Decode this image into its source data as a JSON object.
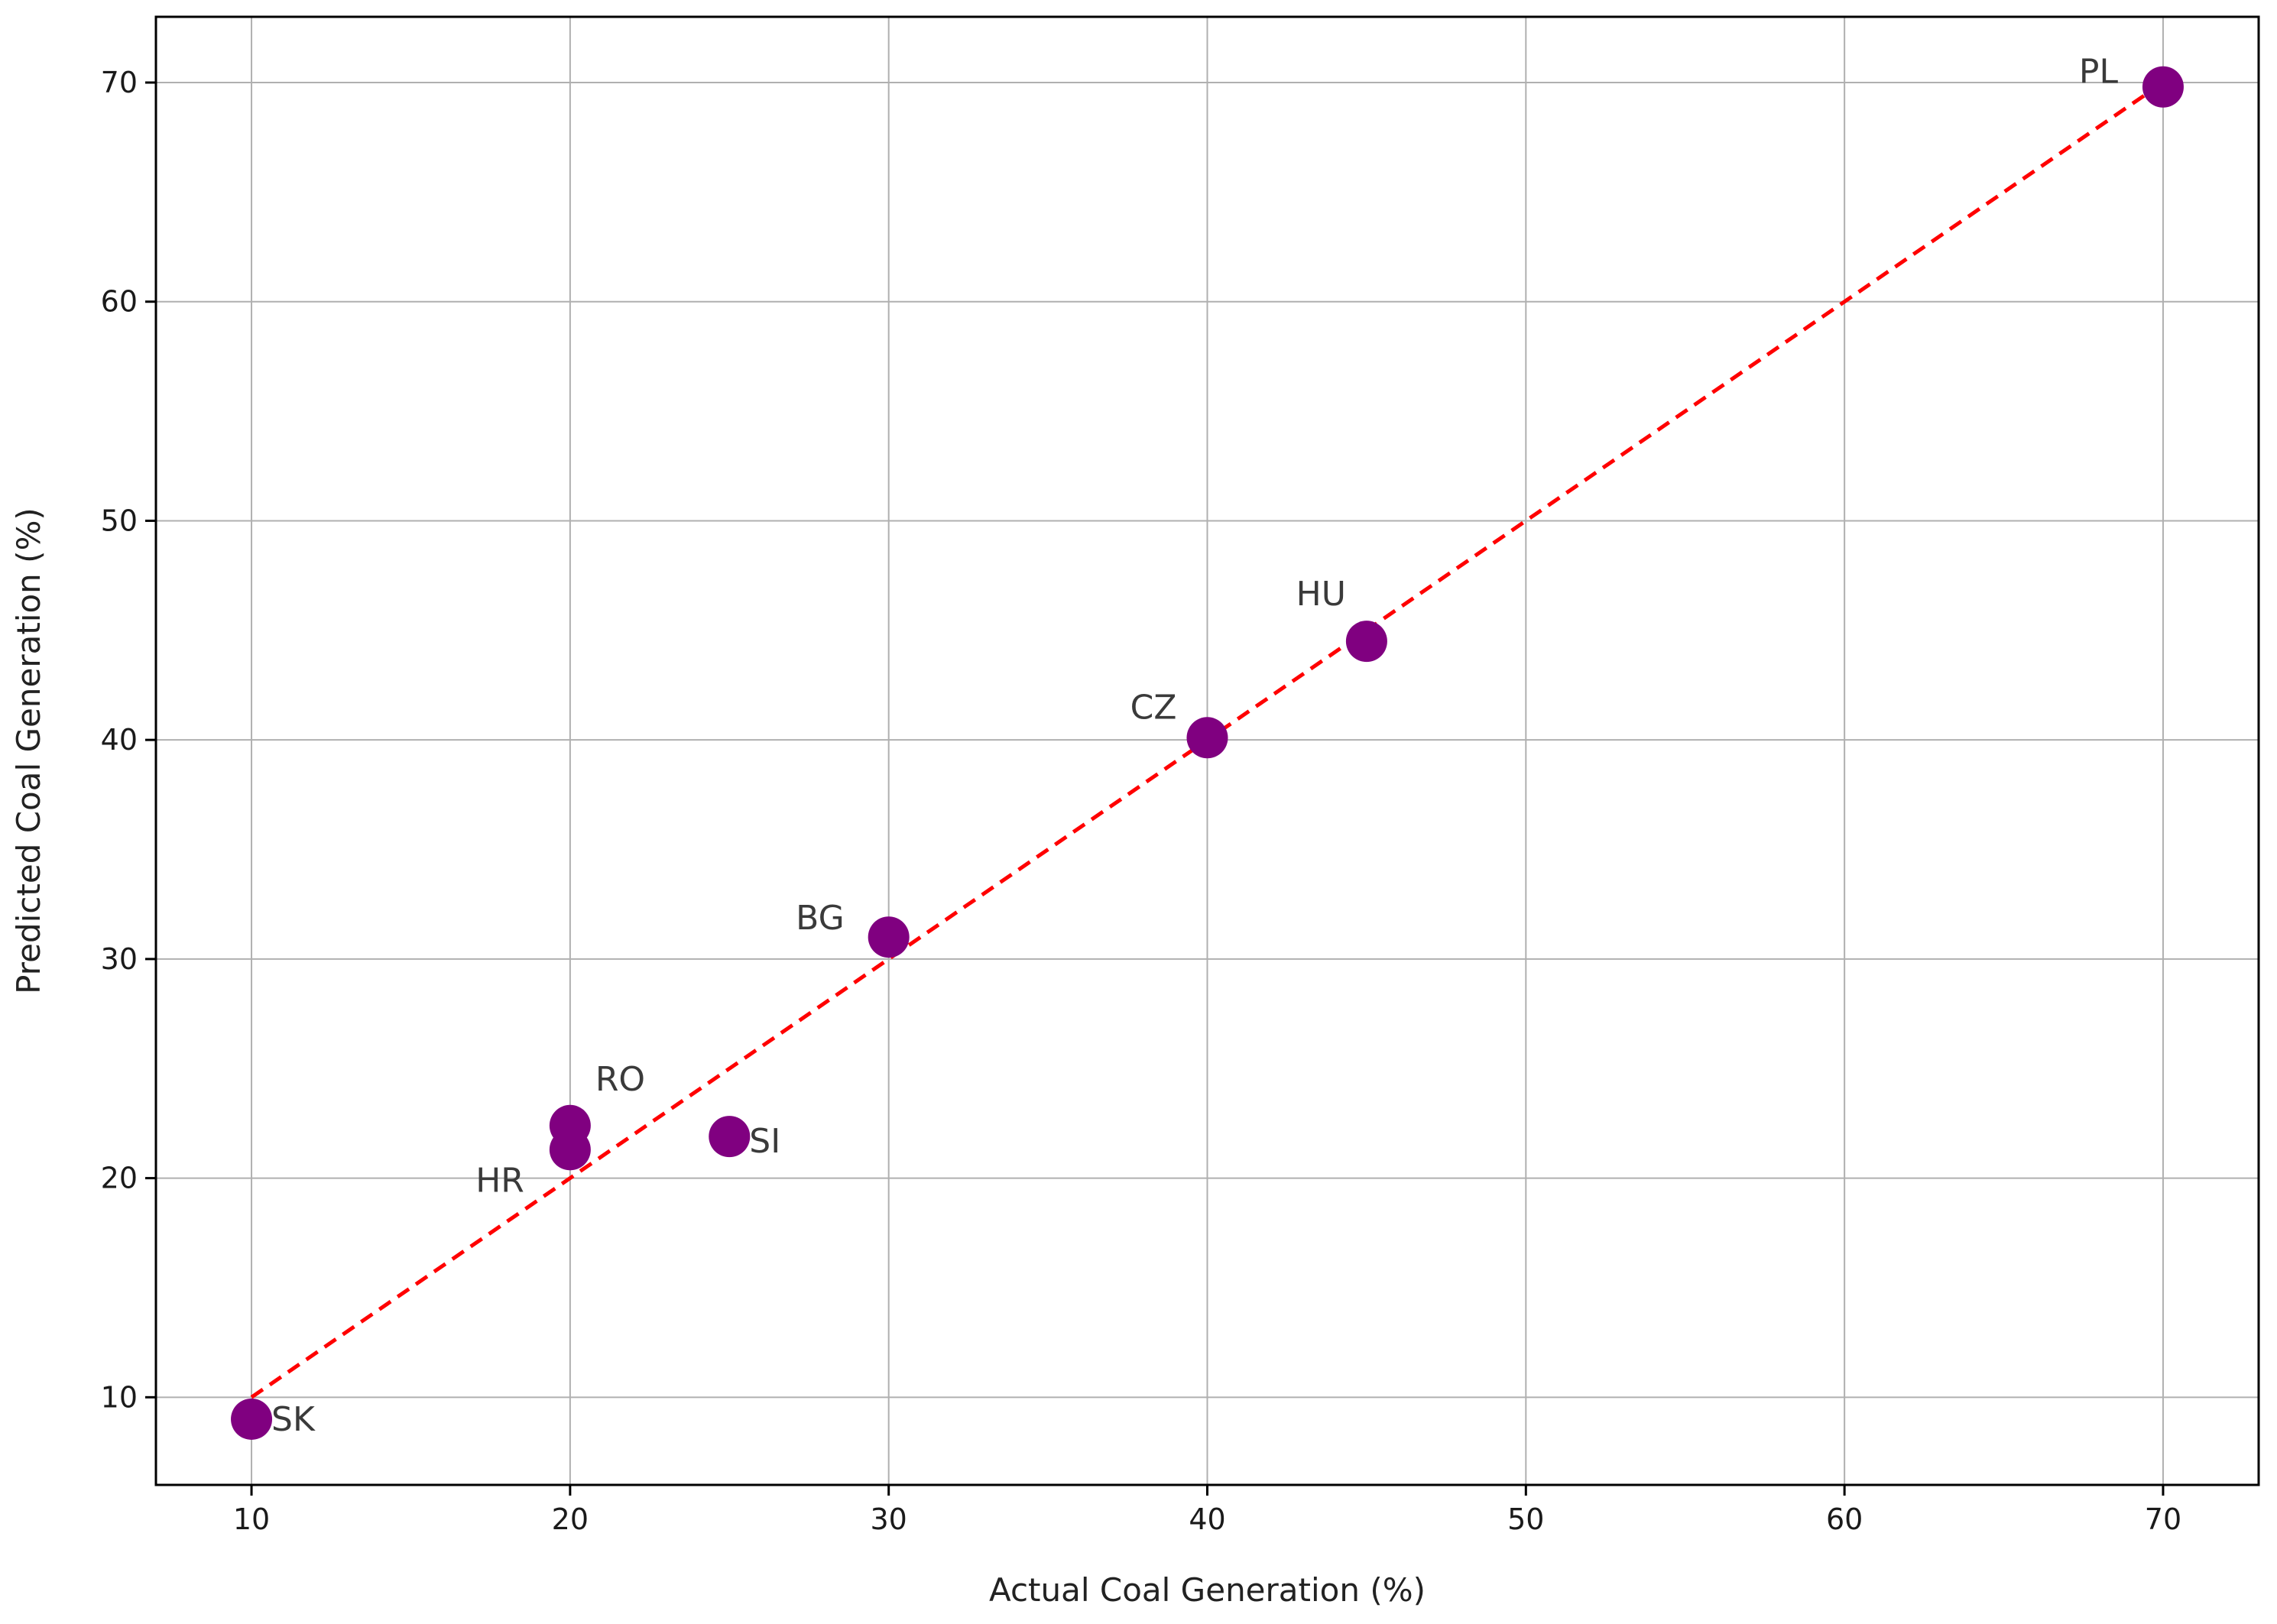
{
  "chart_data": {
    "type": "scatter",
    "title": "",
    "xlabel": "Actual Coal Generation (%)",
    "ylabel": "Predicted Coal Generation (%)",
    "xlim": [
      7,
      73
    ],
    "ylim": [
      6,
      73
    ],
    "xticks": [
      10,
      20,
      30,
      40,
      50,
      60,
      70
    ],
    "yticks": [
      10,
      20,
      30,
      40,
      50,
      60,
      70
    ],
    "grid": true,
    "point_color": "#800080",
    "line_color": "#ff0000",
    "reference_line": {
      "x": [
        10,
        70
      ],
      "y": [
        10,
        70
      ],
      "style": "dashed"
    },
    "points": [
      {
        "label": "PL",
        "x": 70,
        "y": 69.8
      },
      {
        "label": "HU",
        "x": 45,
        "y": 44.5
      },
      {
        "label": "CZ",
        "x": 40,
        "y": 40.1
      },
      {
        "label": "BG",
        "x": 30,
        "y": 31.0
      },
      {
        "label": "RO",
        "x": 20,
        "y": 22.4
      },
      {
        "label": "HR",
        "x": 20,
        "y": 21.3
      },
      {
        "label": "SI",
        "x": 25,
        "y": 21.9
      },
      {
        "label": "SK",
        "x": 10,
        "y": 9.0
      }
    ]
  }
}
